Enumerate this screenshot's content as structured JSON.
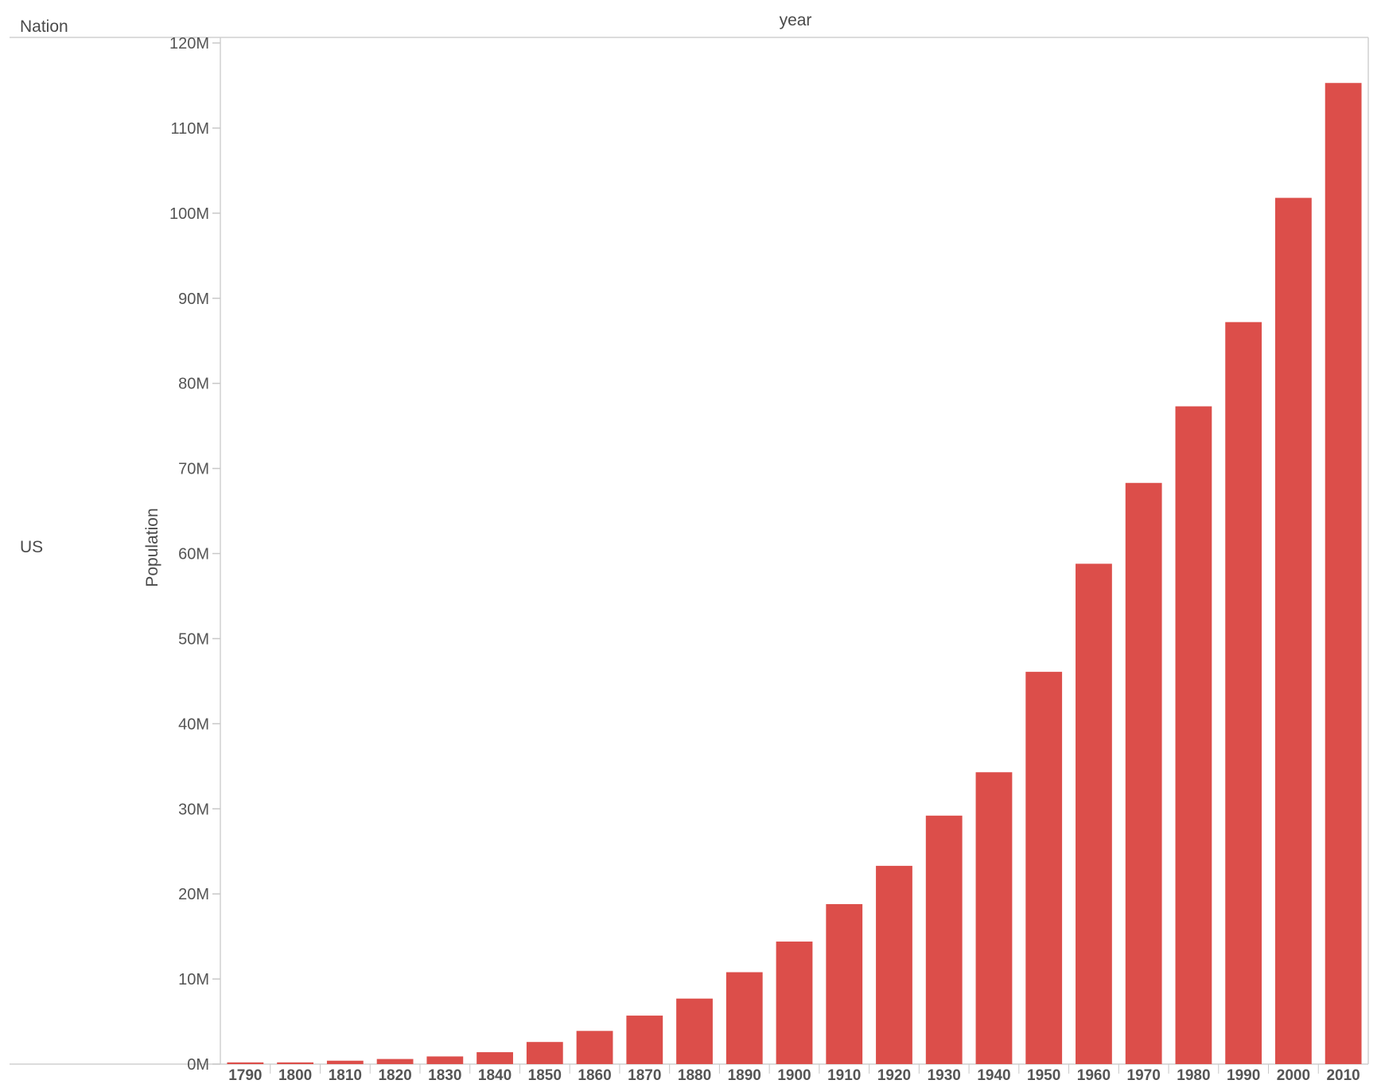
{
  "header": {
    "row_field": "Nation",
    "column_field": "year"
  },
  "row_label": "US",
  "colors": {
    "bar": "#dc4e4a",
    "axis": "#d0d0d0",
    "tick": "#c8c8c8",
    "text": "#4a4a4a"
  },
  "chart_data": {
    "type": "bar",
    "xlabel": "year",
    "ylabel": "Population",
    "ylim": [
      0,
      120000000
    ],
    "yticks": [
      0,
      10000000,
      20000000,
      30000000,
      40000000,
      50000000,
      60000000,
      70000000,
      80000000,
      90000000,
      100000000,
      110000000,
      120000000
    ],
    "ytick_labels": [
      "0M",
      "10M",
      "20M",
      "30M",
      "40M",
      "50M",
      "60M",
      "70M",
      "80M",
      "90M",
      "100M",
      "110M",
      "120M"
    ],
    "grid": false,
    "categories": [
      "1790",
      "1800",
      "1810",
      "1820",
      "1830",
      "1840",
      "1850",
      "1860",
      "1870",
      "1880",
      "1890",
      "1900",
      "1910",
      "1920",
      "1930",
      "1940",
      "1950",
      "1960",
      "1970",
      "1980",
      "1990",
      "2000",
      "2010"
    ],
    "series": [
      {
        "values": [
          200000,
          200000,
          400000,
          600000,
          900000,
          1400000,
          2600000,
          3900000,
          5700000,
          7700000,
          10800000,
          14400000,
          18800000,
          23300000,
          29200000,
          34300000,
          46100000,
          58800000,
          68300000,
          77300000,
          87200000,
          101800000,
          115300000
        ]
      }
    ]
  }
}
